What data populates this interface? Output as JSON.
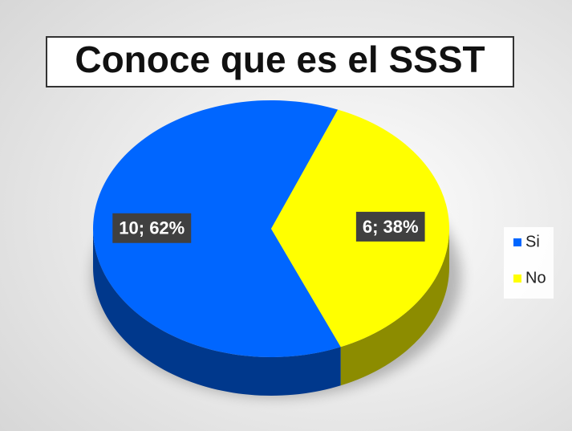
{
  "chart_data": {
    "type": "pie",
    "title": "Conoce que es el SSST",
    "categories": [
      "Si",
      "No"
    ],
    "values": [
      10,
      6
    ],
    "value_labels": [
      "10; 62%",
      "6; 38%"
    ],
    "colors": [
      "#0066ff",
      "#ffff00"
    ],
    "legend": "right"
  }
}
